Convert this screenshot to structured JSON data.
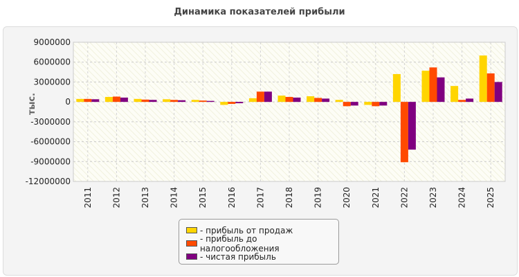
{
  "chart_data": {
    "type": "bar",
    "title": "Динамика показателей прибыли",
    "ylabel": "тыс.",
    "xlabel": "",
    "ylim": [
      -12000000,
      9000000
    ],
    "yticks": [
      9000000,
      6000000,
      3000000,
      0,
      -3000000,
      -6000000,
      -9000000,
      -12000000
    ],
    "ytick_labels": [
      "9000000",
      "6000000",
      "3000000",
      "0",
      "-3000000",
      "-6000000",
      "-9000000",
      "-12000000"
    ],
    "grid": true,
    "legend_position": "bottom",
    "categories": [
      "2011",
      "2012",
      "2013",
      "2014",
      "2015",
      "2016",
      "2017",
      "2018",
      "2019",
      "2020",
      "2021",
      "2022",
      "2023",
      "2024",
      "2025"
    ],
    "series": [
      {
        "name": "- прибыль от продаж",
        "color": "#FFD500",
        "values": [
          450000,
          750000,
          450000,
          400000,
          300000,
          -450000,
          550000,
          950000,
          850000,
          300000,
          -450000,
          4200000,
          4700000,
          2400000,
          7000000
        ]
      },
      {
        "name": "- прибыль до налогообложения",
        "color": "#FF4A00",
        "values": [
          450000,
          800000,
          350000,
          300000,
          200000,
          -300000,
          1550000,
          750000,
          600000,
          -650000,
          -650000,
          -9100000,
          5200000,
          300000,
          4300000
        ]
      },
      {
        "name": "- чистая прибыль",
        "color": "#800080",
        "values": [
          400000,
          650000,
          300000,
          250000,
          150000,
          -200000,
          1550000,
          650000,
          500000,
          -550000,
          -550000,
          -7200000,
          3700000,
          500000,
          3000000
        ]
      }
    ]
  }
}
